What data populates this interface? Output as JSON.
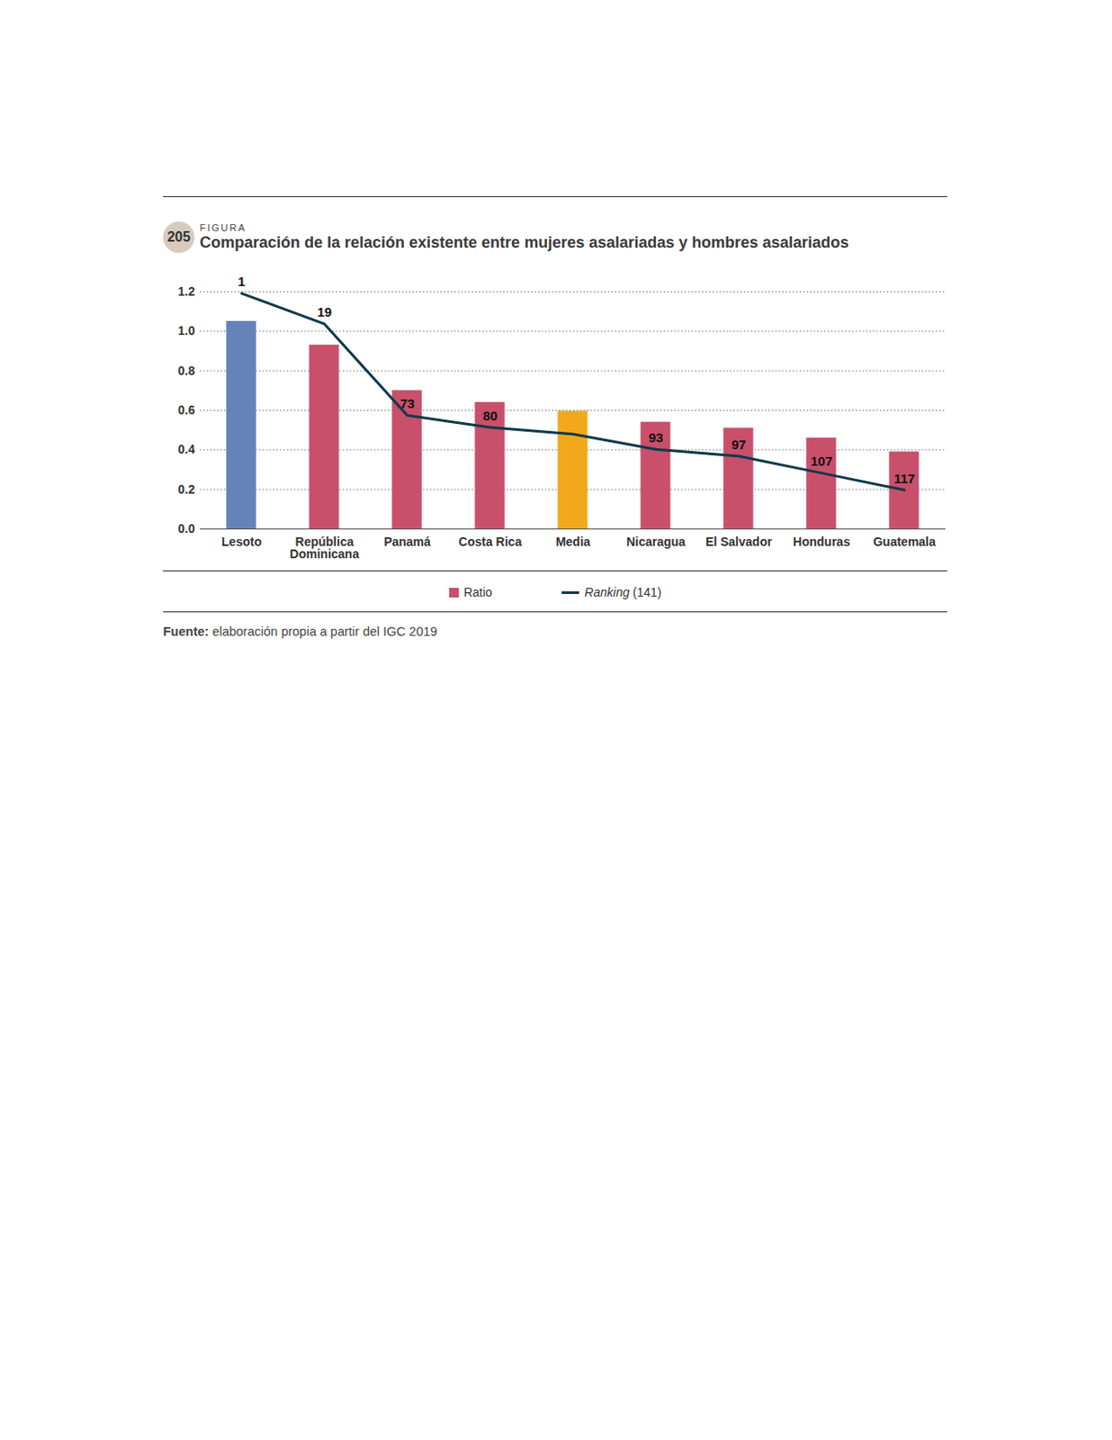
{
  "chart_data": {
    "type": "bar",
    "figure_label": "FIGURA",
    "figure_number": "205",
    "title": "Comparación de la relación existente entre mujeres asalariadas y hombres asalariados",
    "source_label": "Fuente:",
    "source": "elaboración propia a partir del IGC 2019",
    "categories": [
      "Lesoto",
      "República Dominicana",
      "Panamá",
      "Costa Rica",
      "Media",
      "Nicaragua",
      "El Salvador",
      "Honduras",
      "Guatemala"
    ],
    "series": [
      {
        "name": "Ratio",
        "type": "bar",
        "color": "#c8506a",
        "colors": [
          "#6483b8",
          "#c8506a",
          "#c8506a",
          "#c8506a",
          "#f2a81d",
          "#c8506a",
          "#c8506a",
          "#c8506a",
          "#c8506a"
        ],
        "values": [
          1.05,
          0.93,
          0.7,
          0.64,
          0.595,
          0.54,
          0.51,
          0.46,
          0.39
        ]
      },
      {
        "name": "Ranking (141)",
        "type": "line",
        "axis": "y2",
        "color": "#0e3a4a",
        "values": [
          1,
          19,
          73,
          80,
          84,
          93,
          97,
          107,
          117
        ],
        "data_labels": true,
        "value_labels": [
          "1",
          "19",
          "73",
          "80",
          null,
          "93",
          "97",
          "107",
          "117"
        ]
      }
    ],
    "ylim": [
      0,
      1.2
    ],
    "yticks": [
      {
        "value": 0,
        "label": "0.0"
      },
      0.2,
      0.4,
      0.6,
      0.8,
      {
        "value": 1,
        "label": "1.0"
      },
      1.2
    ],
    "y2lim": [
      140,
      0
    ],
    "grid": true,
    "legend": "bottom"
  }
}
